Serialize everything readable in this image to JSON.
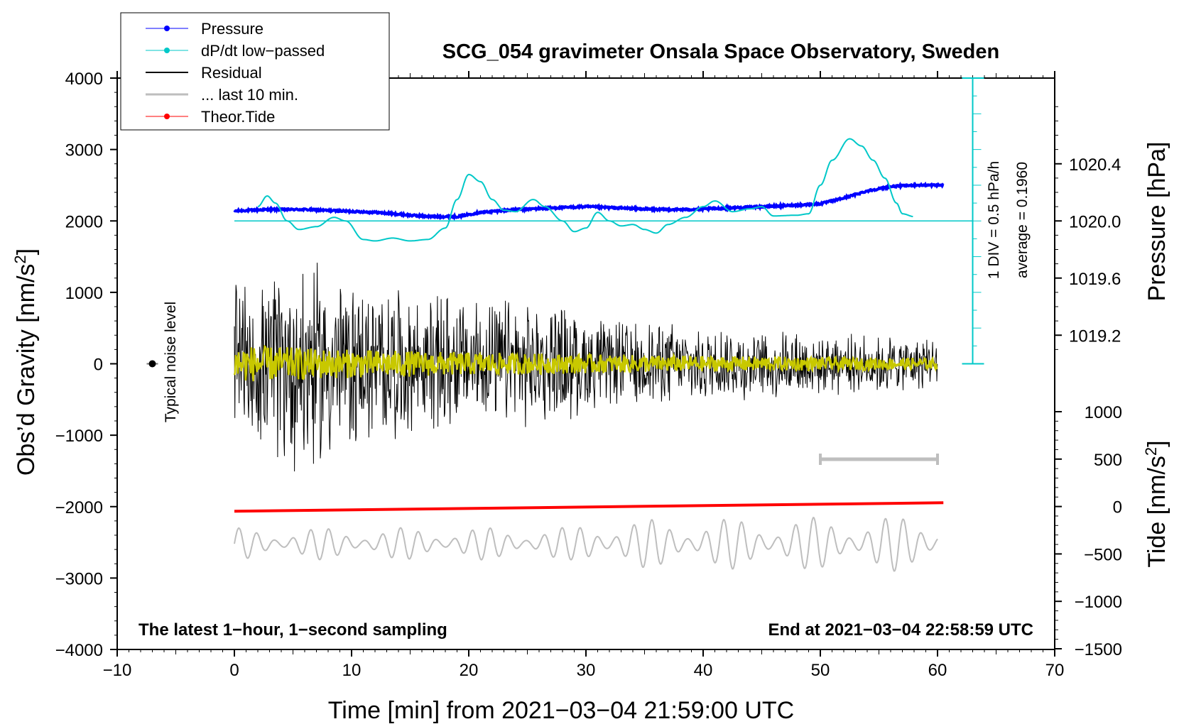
{
  "chart_data": {
    "type": "line",
    "title": "SCG_054 gravimeter Onsala Space Observatory, Sweden",
    "xlabel": "Time [min] from 2021−03−04 21:59:00 UTC",
    "ylabel": "Obs’d Gravity [nm/s",
    "ylabel_sup": "2",
    "ylabel_end": "]",
    "y2label": "Pressure [hPa]",
    "y3label": "Tide [nm/s",
    "y3label_sup": "2",
    "y3label_end": "]",
    "xlim": [
      -10,
      70
    ],
    "ylim": [
      -4000,
      4000
    ],
    "x_ticks": [
      -10,
      0,
      10,
      20,
      30,
      40,
      50,
      60,
      70
    ],
    "x_tick_labels": [
      "−10",
      "0",
      "10",
      "20",
      "30",
      "40",
      "50",
      "60",
      "70"
    ],
    "y_ticks": [
      4000,
      3000,
      2000,
      1000,
      0,
      -1000,
      -2000,
      -3000,
      -4000
    ],
    "y_tick_labels": [
      "4000",
      "3000",
      "2000",
      "1000",
      "0",
      "−1000",
      "−2000",
      "−3000",
      "−4000"
    ],
    "pressure_axis": {
      "ticks": [
        1020.4,
        1020.0,
        1019.6,
        1019.2
      ],
      "tick_labels": [
        "1020.4",
        "1020.0",
        "1019.6",
        "1019.2"
      ],
      "anchor_value": 1020.0,
      "anchor_gravity": 2000,
      "gravity_per_hpa": 2000
    },
    "tide_axis": {
      "ticks": [
        1000,
        500,
        0,
        -500,
        -1000,
        -1500
      ],
      "tick_labels": [
        "1000",
        "500",
        "0",
        "−500",
        "−1000",
        "−1500"
      ],
      "range": [
        -1500,
        1000
      ]
    },
    "legend": [
      {
        "label": "Pressure",
        "color": "#0000ff",
        "marker": true,
        "width": 1
      },
      {
        "label": "dP/dt low−passed",
        "color": "#00c8c8",
        "marker": true,
        "width": 1
      },
      {
        "label": "Residual",
        "color": "#000000",
        "marker": false,
        "width": 2
      },
      {
        "label": "... last 10 min.",
        "color": "#bebebe",
        "marker": false,
        "width": 3
      },
      {
        "label": "Theor.Tide",
        "color": "#ff0000",
        "marker": true,
        "width": 1
      }
    ],
    "annotations": {
      "noise_label": "Typical noise level",
      "noise_point": {
        "x": -7,
        "y": 0
      },
      "div_label": "1 DIV = 0.5 hPa/h",
      "average_label": "average = 0.1960",
      "bottom_left": "The latest 1−hour, 1−second sampling",
      "bottom_right": "End at 2021−03−04 22:58:59 UTC",
      "last10_bar": [
        50,
        60
      ]
    },
    "series": [
      {
        "name": "Pressure",
        "axis": "pressure",
        "color": "#0000ff",
        "x": [
          0,
          3,
          6,
          9,
          12,
          15,
          17,
          19,
          21,
          24,
          27,
          30,
          33,
          36,
          39,
          42,
          45,
          48,
          50,
          52,
          54,
          56,
          58,
          60.5
        ],
        "values": [
          1020.07,
          1020.08,
          1020.08,
          1020.07,
          1020.06,
          1020.04,
          1020.03,
          1020.03,
          1020.06,
          1020.08,
          1020.09,
          1020.1,
          1020.09,
          1020.08,
          1020.08,
          1020.09,
          1020.1,
          1020.11,
          1020.12,
          1020.16,
          1020.21,
          1020.24,
          1020.25,
          1020.25
        ]
      },
      {
        "name": "dP/dt low−passed",
        "axis": "gravity",
        "color": "#00c8c8",
        "x": [
          2,
          2.8,
          3.5,
          4.5,
          5.5,
          7,
          8.5,
          9.5,
          11,
          12,
          13.5,
          15,
          16.5,
          18,
          19,
          20,
          21,
          22,
          23,
          24,
          25.5,
          26.5,
          28,
          29,
          30,
          31,
          32,
          33,
          34,
          35,
          36,
          37,
          38.5,
          40,
          41,
          42.5,
          44,
          45,
          46,
          48,
          49,
          50,
          51,
          52.5,
          53.5,
          54.5,
          55.5,
          56.5,
          57,
          58
        ],
        "values": [
          2200,
          2350,
          2250,
          2000,
          1880,
          1920,
          2050,
          2000,
          1740,
          1720,
          1760,
          1720,
          1740,
          1900,
          2300,
          2650,
          2550,
          2300,
          2150,
          2130,
          2300,
          2200,
          2000,
          1850,
          1900,
          2120,
          2000,
          1930,
          1950,
          1880,
          1830,
          1950,
          2050,
          2200,
          2280,
          2130,
          2170,
          2200,
          2070,
          2080,
          2100,
          2500,
          2850,
          3150,
          3050,
          2850,
          2600,
          2250,
          2100,
          2060
        ]
      },
      {
        "name": "Residual",
        "axis": "gravity",
        "color": "#000000",
        "x_range": [
          0,
          60
        ],
        "envelope": [
          [
            0,
            1100
          ],
          [
            6,
            1600
          ],
          [
            10,
            1150
          ],
          [
            20,
            950
          ],
          [
            27,
            950
          ],
          [
            31,
            650
          ],
          [
            45,
            520
          ],
          [
            60,
            380
          ]
        ]
      },
      {
        "name": "Residual smoothed",
        "axis": "gravity",
        "color": "#c8c800",
        "x_range": [
          0,
          60
        ],
        "envelope": [
          [
            0,
            260
          ],
          [
            10,
            200
          ],
          [
            20,
            160
          ],
          [
            40,
            110
          ],
          [
            60,
            80
          ]
        ]
      },
      {
        "name": "... last 10 min.",
        "axis": "gravity",
        "color": "#bebebe",
        "x_range": [
          0,
          60
        ],
        "base": -2520,
        "envelope": [
          [
            0,
            220
          ],
          [
            29,
            230
          ],
          [
            30,
            330
          ],
          [
            60,
            390
          ]
        ]
      },
      {
        "name": "Theor.Tide",
        "axis": "tide",
        "color": "#ff0000",
        "x": [
          0,
          60.5
        ],
        "values": [
          -50,
          40
        ]
      }
    ]
  }
}
